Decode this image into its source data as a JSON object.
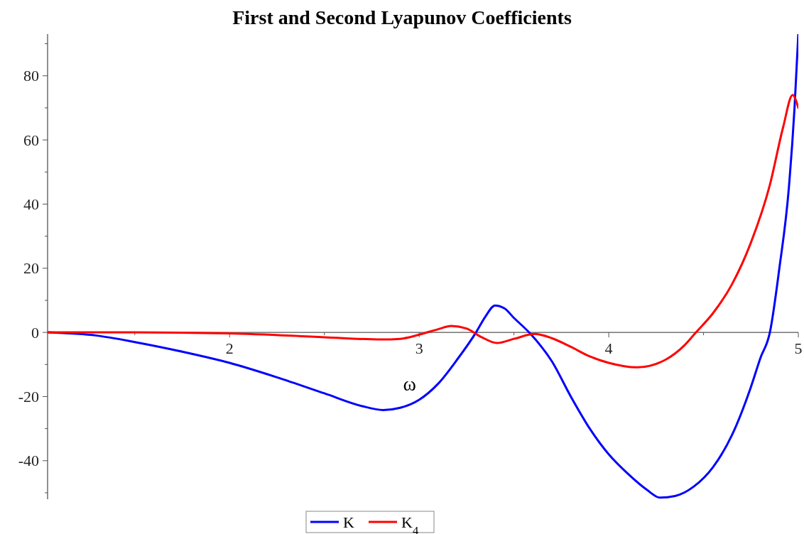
{
  "chart_data": {
    "type": "line",
    "title": "First and Second Lyapunov Coefficients",
    "xlabel": "ω",
    "xlim": [
      1.04,
      5
    ],
    "ylim": [
      -52,
      93
    ],
    "xticks": [
      {
        "value": 1.5,
        "label": null
      },
      2,
      {
        "value": 2.5,
        "label": null
      },
      3,
      {
        "value": 3.5,
        "label": null
      },
      4,
      {
        "value": 4.5,
        "label": null
      },
      5
    ],
    "yticks": [
      {
        "value": -50,
        "label": null
      },
      -40,
      {
        "value": -30,
        "label": null
      },
      -20,
      {
        "value": -10,
        "label": null
      },
      0,
      {
        "value": 10,
        "label": null
      },
      20,
      {
        "value": 30,
        "label": null
      },
      40,
      {
        "value": 50,
        "label": null
      },
      60,
      {
        "value": 70,
        "label": null
      },
      80,
      {
        "value": 90,
        "label": null
      }
    ],
    "grid": false,
    "legend": "bottom",
    "marker": "none",
    "line_style": "solid",
    "series": [
      {
        "name": "K",
        "color": "#0000ff",
        "x": [
          1.04,
          1.3,
          1.5,
          1.75,
          2,
          2.25,
          2.5,
          2.7,
          2.81,
          2.9,
          3,
          3.1,
          3.2,
          3.3,
          3.35,
          3.4,
          3.45,
          3.5,
          3.58,
          3.7,
          3.8,
          3.9,
          4,
          4.1,
          4.2,
          4.27,
          4.35,
          4.45,
          4.55,
          4.65,
          4.75,
          4.8,
          4.85,
          4.9,
          4.95,
          4.98,
          5
        ],
        "values": [
          0,
          -1,
          -3,
          -6,
          -9.5,
          -14,
          -19,
          -23,
          -24.2,
          -23.5,
          -21,
          -16,
          -8.5,
          0,
          5,
          8.4,
          7.5,
          4.5,
          0,
          -9,
          -20,
          -30,
          -38,
          -44,
          -49,
          -51.5,
          -51,
          -48,
          -42,
          -32,
          -17,
          -8,
          0,
          20,
          45,
          70,
          93
        ]
      },
      {
        "name": "K$_{4}$",
        "color": "#ff0000",
        "x": [
          1.04,
          1.5,
          2,
          2.5,
          2.8,
          2.9,
          3,
          3.1,
          3.17,
          3.25,
          3.33,
          3.41,
          3.5,
          3.61,
          3.7,
          3.8,
          3.9,
          4,
          4.15,
          4.3,
          4.4,
          4.46,
          4.55,
          4.65,
          4.75,
          4.85,
          4.92,
          4.97,
          5
        ],
        "values": [
          0,
          0,
          -0.3,
          -1.5,
          -2.2,
          -2,
          -0.7,
          1,
          2,
          1.2,
          -1.5,
          -3.3,
          -2,
          -0.5,
          -1.8,
          -4.5,
          -7.5,
          -9.5,
          -10.9,
          -8.5,
          -4,
          0,
          6,
          15,
          28,
          46,
          64,
          74,
          70
        ]
      }
    ]
  }
}
